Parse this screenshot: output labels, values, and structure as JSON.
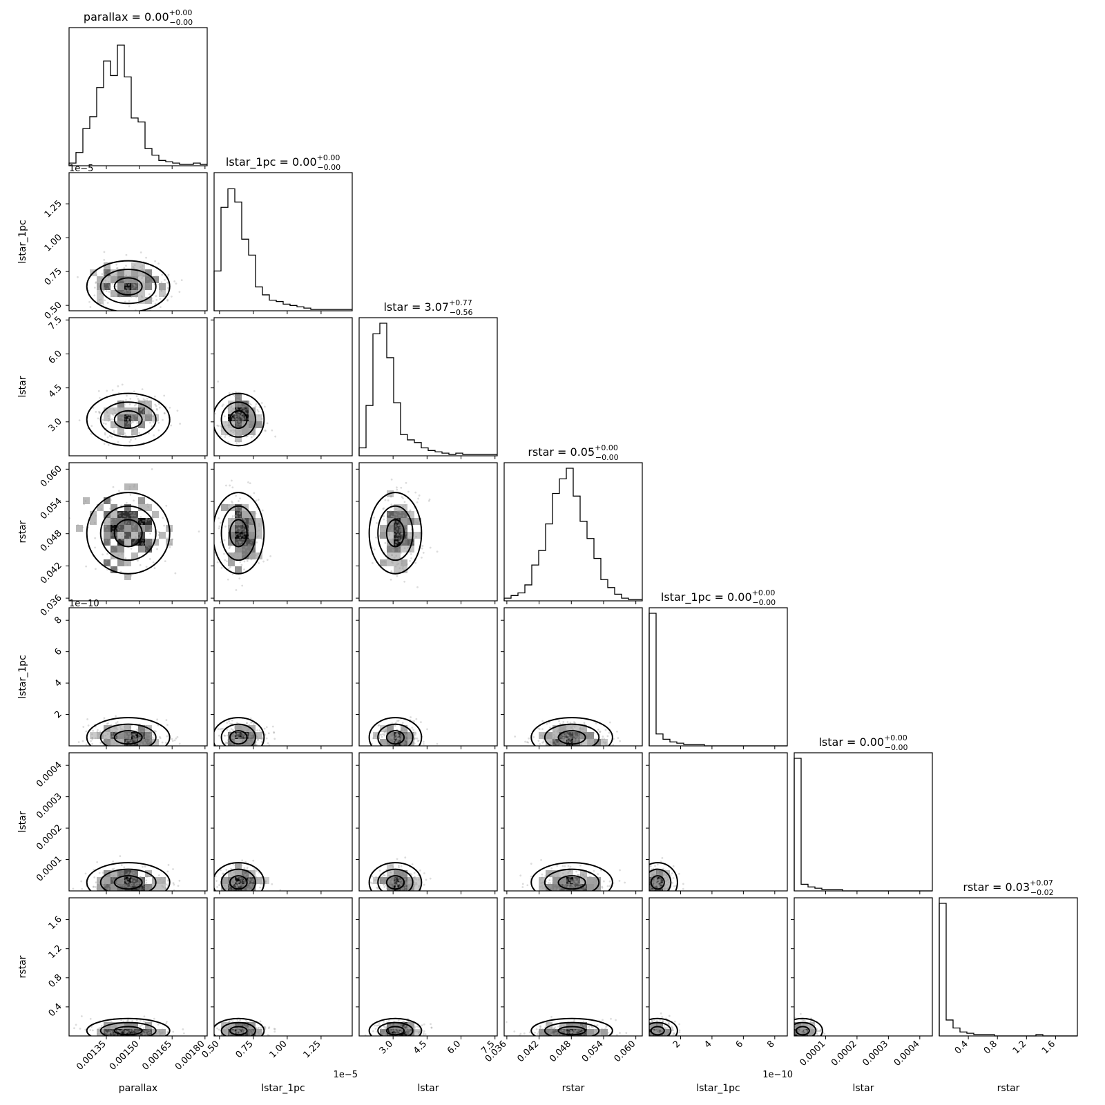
{
  "chart_data": {
    "type": "corner",
    "parameters": [
      {
        "name": "parallax",
        "xlabel": "parallax",
        "ylabel": "",
        "title_main": "parallax = 0.00",
        "title_sup": "+0.00",
        "title_sub": "−0.00",
        "range": [
          0.00118,
          0.00181
        ],
        "ticks": [
          0.00135,
          0.0015,
          0.00165,
          0.0018
        ],
        "tick_labels": [
          "0.00135",
          "0.00150",
          "0.00165",
          "0.00180"
        ],
        "offset_label": "",
        "hist": [
          0.02,
          0.1,
          0.28,
          0.37,
          0.59,
          0.79,
          0.68,
          0.91,
          0.67,
          0.36,
          0.33,
          0.13,
          0.08,
          0.04,
          0.03,
          0.02,
          0.01,
          0.01,
          0.02,
          0.01
        ],
        "samples": {
          "mean": 0.00145,
          "sd": 9e-05,
          "skew": "none"
        }
      },
      {
        "name": "lstar_1pc",
        "xlabel": "lstar_1pc",
        "ylabel": "lstar_1pc",
        "title_main": "lstar_1pc = 0.00",
        "title_sup": "+0.00",
        "title_sub": "−0.00",
        "range": [
          0.46,
          1.48
        ],
        "ticks": [
          0.5,
          0.75,
          1.0,
          1.25
        ],
        "tick_labels": [
          "0.50",
          "0.75",
          "1.00",
          "1.25"
        ],
        "offset_label": "1e−5",
        "hist": [
          0.3,
          0.78,
          0.92,
          0.82,
          0.54,
          0.42,
          0.18,
          0.12,
          0.08,
          0.07,
          0.05,
          0.04,
          0.03,
          0.02,
          0.01,
          0.01,
          0.01,
          0.01,
          0.01,
          0.01
        ],
        "samples": {
          "mean": 0.64,
          "sd": 0.09,
          "skew": "right"
        }
      },
      {
        "name": "lstar",
        "xlabel": "lstar",
        "ylabel": "lstar",
        "title_main": "lstar = 3.07",
        "title_sup": "+0.77",
        "title_sub": "−0.56",
        "range": [
          1.5,
          7.6
        ],
        "ticks": [
          3.0,
          4.5,
          6.0,
          7.5
        ],
        "tick_labels": [
          "3.0",
          "4.5",
          "6.0",
          "7.5"
        ],
        "offset_label": "",
        "hist": [
          0.06,
          0.38,
          0.92,
          1.0,
          0.74,
          0.4,
          0.16,
          0.12,
          0.1,
          0.06,
          0.04,
          0.03,
          0.02,
          0.01,
          0.02,
          0.01,
          0.01,
          0.01,
          0.01,
          0.01
        ],
        "samples": {
          "mean": 3.1,
          "sd": 0.55,
          "skew": "right"
        }
      },
      {
        "name": "rstar",
        "xlabel": "rstar",
        "ylabel": "rstar",
        "title_main": "rstar = 0.05",
        "title_sup": "+0.00",
        "title_sub": "−0.00",
        "range": [
          0.0355,
          0.0612
        ],
        "ticks": [
          0.036,
          0.042,
          0.048,
          0.054,
          0.06
        ],
        "tick_labels": [
          "0.036",
          "0.042",
          "0.048",
          "0.054",
          "0.060"
        ],
        "offset_label": "",
        "hist": [
          0.02,
          0.04,
          0.06,
          0.12,
          0.27,
          0.38,
          0.58,
          0.81,
          0.92,
          1.0,
          0.79,
          0.6,
          0.47,
          0.32,
          0.16,
          0.1,
          0.05,
          0.02,
          0.01,
          0.01
        ],
        "samples": {
          "mean": 0.0481,
          "sd": 0.0036,
          "skew": "none"
        }
      },
      {
        "name": "lstar_1pc_2",
        "xlabel": "lstar_1pc",
        "ylabel": "lstar_1pc",
        "title_main": "lstar_1pc = 0.00",
        "title_sup": "+0.00",
        "title_sub": "−0.00",
        "range": [
          0.0,
          8.8
        ],
        "ticks": [
          2,
          4,
          6,
          8
        ],
        "tick_labels": [
          "2",
          "4",
          "6",
          "8"
        ],
        "offset_label": "1e−10",
        "hist": [
          1.0,
          0.09,
          0.05,
          0.03,
          0.02,
          0.01,
          0.01,
          0.01,
          0.0,
          0.0,
          0.0,
          0.0,
          0.0,
          0.0,
          0.0,
          0.0,
          0.0,
          0.0,
          0.0,
          0.0
        ],
        "samples": {
          "mean": 0.4,
          "sd": 0.6,
          "skew": "heavy"
        }
      },
      {
        "name": "lstar_2",
        "xlabel": "lstar",
        "ylabel": "lstar",
        "title_main": "lstar = 0.00",
        "title_sup": "+0.00",
        "title_sub": "−0.00",
        "range": [
          0.0,
          0.00044
        ],
        "ticks": [
          0.0001,
          0.0002,
          0.0003,
          0.0004
        ],
        "tick_labels": [
          "0.0001",
          "0.0002",
          "0.0003",
          "0.0004"
        ],
        "offset_label": "",
        "hist": [
          1.0,
          0.05,
          0.03,
          0.02,
          0.01,
          0.01,
          0.01,
          0.0,
          0.0,
          0.0,
          0.0,
          0.0,
          0.0,
          0.0,
          0.0,
          0.0,
          0.0,
          0.0,
          0.0,
          0.0
        ],
        "samples": {
          "mean": 1.5e-05,
          "sd": 3e-05,
          "skew": "heavy"
        }
      },
      {
        "name": "rstar_2",
        "xlabel": "rstar",
        "ylabel": "rstar",
        "title_main": "rstar = 0.03",
        "title_sup": "+0.07",
        "title_sub": "−0.02",
        "range": [
          0.0,
          1.9
        ],
        "ticks": [
          0.4,
          0.8,
          1.2,
          1.6
        ],
        "tick_labels": [
          "0.4",
          "0.8",
          "1.2",
          "1.6"
        ],
        "offset_label": "",
        "hist": [
          1.0,
          0.12,
          0.06,
          0.03,
          0.02,
          0.01,
          0.01,
          0.01,
          0.0,
          0.0,
          0.0,
          0.0,
          0.0,
          0.0,
          0.01,
          0.0,
          0.0,
          0.0,
          0.0,
          0.0
        ],
        "samples": {
          "mean": 0.05,
          "sd": 0.08,
          "skew": "heavy"
        }
      }
    ]
  }
}
